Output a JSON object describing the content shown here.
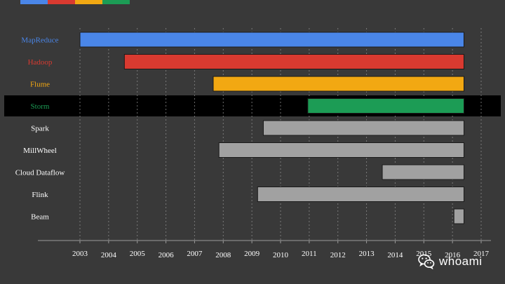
{
  "chart_data": {
    "type": "bar",
    "orientation": "horizontal",
    "categories": [
      "MapReduce",
      "Hadoop",
      "Flume",
      "Storm",
      "Spark",
      "MillWheel",
      "Cloud Dataflow",
      "Flink",
      "Beam"
    ],
    "bars": [
      {
        "name": "MapReduce",
        "start": 2003.0,
        "end": 2016.4,
        "color": "#4a86e8",
        "label_color": "#4a86e8"
      },
      {
        "name": "Hadoop",
        "start": 2004.55,
        "end": 2016.4,
        "color": "#d93a30",
        "label_color": "#d93a30"
      },
      {
        "name": "Flume",
        "start": 2007.65,
        "end": 2016.4,
        "color": "#f2a812",
        "label_color": "#f2a812"
      },
      {
        "name": "Storm",
        "start": 2010.95,
        "end": 2016.4,
        "color": "#1c9c55",
        "label_color": "#1c9c55",
        "highlighted": true
      },
      {
        "name": "Spark",
        "start": 2009.4,
        "end": 2016.4,
        "color": "#a1a1a1",
        "label_color": "#ffffff"
      },
      {
        "name": "MillWheel",
        "start": 2007.85,
        "end": 2016.4,
        "color": "#a1a1a1",
        "label_color": "#ffffff"
      },
      {
        "name": "Cloud Dataflow",
        "start": 2013.55,
        "end": 2016.4,
        "color": "#a1a1a1",
        "label_color": "#ffffff"
      },
      {
        "name": "Flink",
        "start": 2009.2,
        "end": 2016.4,
        "color": "#a1a1a1",
        "label_color": "#ffffff"
      },
      {
        "name": "Beam",
        "start": 2016.05,
        "end": 2016.4,
        "color": "#a1a1a1",
        "label_color": "#ffffff"
      }
    ],
    "x_ticks": [
      "2003",
      "2004",
      "2005",
      "2006",
      "2007",
      "2008",
      "2009",
      "2010",
      "2011",
      "2012",
      "2013",
      "2014",
      "2015",
      "2016",
      "2017"
    ],
    "xlim": [
      2003,
      2017
    ],
    "grid": true,
    "highlight_row_color": "#000000",
    "background": "#393939"
  },
  "top_strip_colors": [
    "#4a86e8",
    "#d93a30",
    "#f2a812",
    "#1c9c55"
  ],
  "watermark": {
    "icon": "wechat-icon",
    "text": "whoami"
  }
}
